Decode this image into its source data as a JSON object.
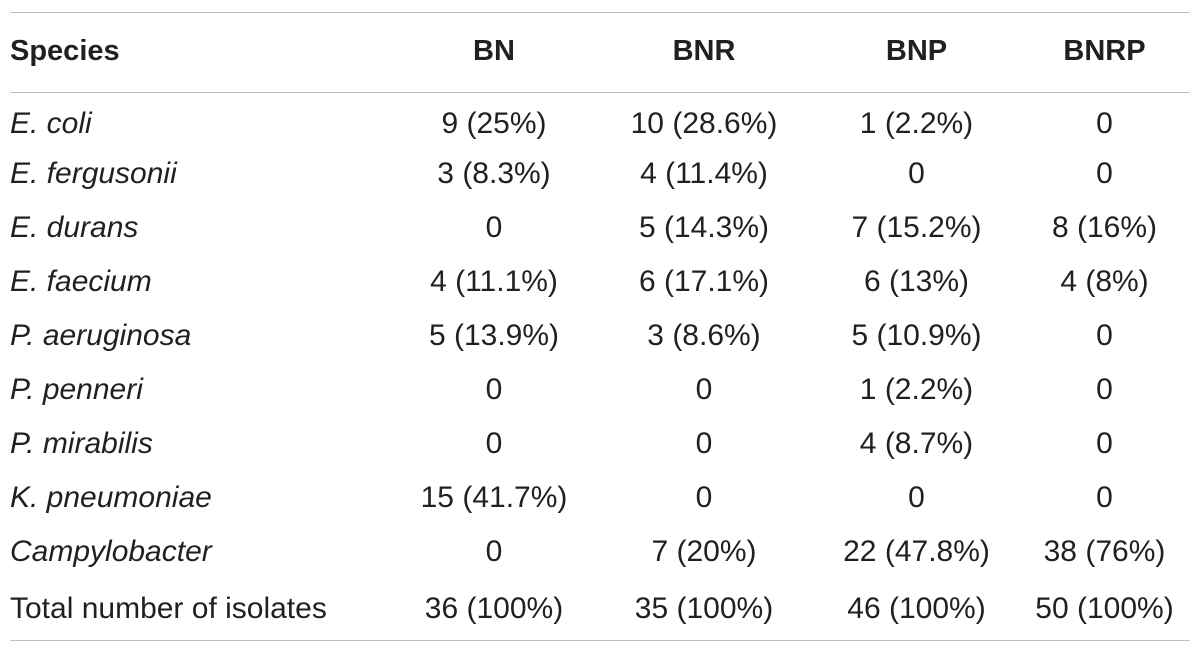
{
  "table": {
    "headers": [
      "Species",
      "BN",
      "BNR",
      "BNP",
      "BNRP"
    ],
    "rows": [
      {
        "species": "E. coli",
        "italic": true,
        "values": [
          "9 (25%)",
          "10 (28.6%)",
          "1 (2.2%)",
          "0"
        ]
      },
      {
        "species": "E. fergusonii",
        "italic": true,
        "values": [
          "3 (8.3%)",
          "4 (11.4%)",
          "0",
          "0"
        ]
      },
      {
        "species": "E. durans",
        "italic": true,
        "values": [
          "0",
          "5 (14.3%)",
          "7 (15.2%)",
          "8 (16%)"
        ]
      },
      {
        "species": "E. faecium",
        "italic": true,
        "values": [
          "4 (11.1%)",
          "6 (17.1%)",
          "6 (13%)",
          "4 (8%)"
        ]
      },
      {
        "species": "P. aeruginosa",
        "italic": true,
        "values": [
          "5 (13.9%)",
          "3 (8.6%)",
          "5 (10.9%)",
          "0"
        ]
      },
      {
        "species": "P. penneri",
        "italic": true,
        "values": [
          "0",
          "0",
          "1 (2.2%)",
          "0"
        ]
      },
      {
        "species": "P. mirabilis",
        "italic": true,
        "values": [
          "0",
          "0",
          "4 (8.7%)",
          "0"
        ]
      },
      {
        "species": "K. pneumoniae",
        "italic": true,
        "values": [
          "15 (41.7%)",
          "0",
          "0",
          "0"
        ]
      },
      {
        "species": "Campylobacter",
        "italic": true,
        "values": [
          "0",
          "7 (20%)",
          "22 (47.8%)",
          "38 (76%)"
        ]
      },
      {
        "species": "Total number of isolates",
        "italic": false,
        "values": [
          "36 (100%)",
          "35 (100%)",
          "46 (100%)",
          "50 (100%)"
        ]
      }
    ]
  }
}
